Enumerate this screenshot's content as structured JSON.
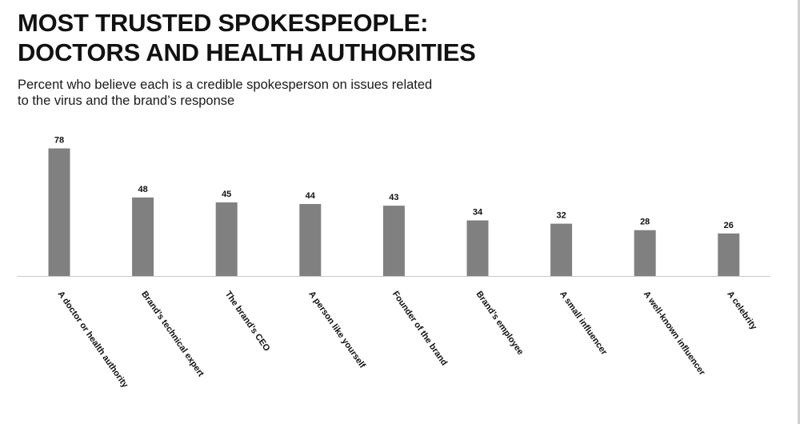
{
  "title_lines": [
    "MOST TRUSTED SPOKESPEOPLE:",
    "DOCTORS AND HEALTH AUTHORITIES"
  ],
  "subtitle_lines": [
    "Percent who believe each is a credible spokesperson on issues related",
    "to the virus and the brand’s response"
  ],
  "colors": {
    "bar": "#808080",
    "axis": "#c8c8c8",
    "text": "#111111"
  },
  "chart_data": {
    "type": "bar",
    "title": "MOST TRUSTED SPOKESPEOPLE: DOCTORS AND HEALTH AUTHORITIES",
    "subtitle": "Percent who believe each is a credible spokesperson on issues related to the virus and the brand’s response",
    "categories": [
      "A doctor or health authority",
      "Brand’s technical expert",
      "The brand’s CEO",
      "A person like yourself",
      "Founder of the brand",
      "Brand’s employee",
      "A small influencer",
      "A well-known influencer",
      "A celebrity"
    ],
    "values": [
      78,
      48,
      45,
      44,
      43,
      34,
      32,
      28,
      26
    ],
    "xlabel": "",
    "ylabel": "",
    "ylim": [
      0,
      100
    ],
    "grid": false,
    "legend": "none"
  }
}
